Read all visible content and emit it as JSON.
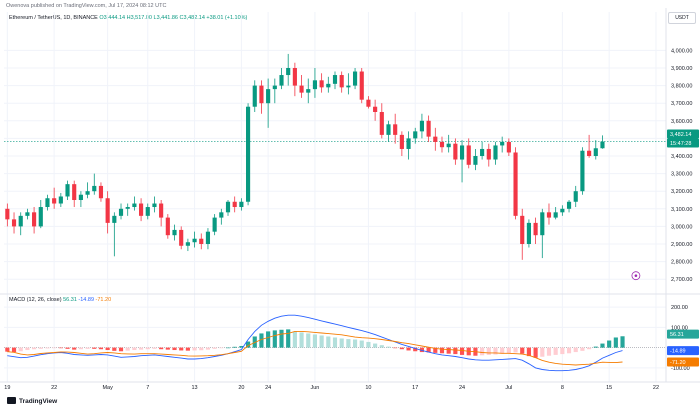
{
  "header": {
    "attribution": "Owenova published on TradingView.com, Jul 17, 2024 08:12 UTC"
  },
  "symbol": {
    "name": "Ethereum / TetherUS, 1D, BINANCE",
    "ohlc": "O3,444.14  H3,517.00  L3,441.86  C3,482.14  +38.01 (+1.10%)"
  },
  "currency_button": "USDT",
  "macd_title": {
    "label": "MACD (12, 26, close)",
    "hist": "56.31",
    "macd": "-14.89",
    "signal": "-71.20"
  },
  "logo": "TradingView",
  "colors": {
    "up": "#089981",
    "down": "#f23645",
    "macd_line": "#2962ff",
    "signal_line": "#f57c00",
    "hist_up": "#26a69a",
    "hist_up_light": "#b2dfdb",
    "hist_down": "#ff5252",
    "hist_down_light": "#ffcdd2"
  },
  "price_labels": {
    "last": "3,482.14",
    "countdown": "15:47:28"
  },
  "macd_labels": {
    "hist": "56.31",
    "macd": "-14.89",
    "signal": "-71.20"
  },
  "chart_data": [
    {
      "type": "candlestick",
      "ylim": [
        2650,
        4150
      ],
      "y_ticks": [
        2700,
        2800,
        2900,
        3000,
        3100,
        3200,
        3300,
        3400,
        3500,
        3600,
        3700,
        3800,
        3900,
        4000
      ],
      "y_tick_labels": [
        "2,700.00",
        "2,800.00",
        "2,900.00",
        "3,000.00",
        "3,100.00",
        "3,200.00",
        "3,300.00",
        "3,400.00",
        "3,500.00",
        "3,600.00",
        "3,700.00",
        "3,800.00",
        "3,900.00",
        "4,000.00"
      ],
      "x_tick_labels": [
        "19",
        "22",
        "May",
        "7",
        "13",
        "20",
        "24",
        "Jun",
        "10",
        "17",
        "24",
        "Jul",
        "8",
        "15",
        "22"
      ],
      "x_tick_index": [
        0,
        7,
        15,
        21,
        28,
        35,
        39,
        46,
        54,
        61,
        68,
        75,
        83,
        90,
        97
      ],
      "grid": true,
      "candles": [
        [
          3100,
          3130,
          3000,
          3040
        ],
        [
          3040,
          3080,
          2960,
          3000
        ],
        [
          3000,
          3080,
          2950,
          3060
        ],
        [
          3060,
          3100,
          3040,
          3080
        ],
        [
          3080,
          3110,
          2960,
          3000
        ],
        [
          3000,
          3150,
          2990,
          3110
        ],
        [
          3110,
          3180,
          3090,
          3160
        ],
        [
          3160,
          3220,
          3100,
          3130
        ],
        [
          3130,
          3190,
          3110,
          3170
        ],
        [
          3170,
          3260,
          3150,
          3240
        ],
        [
          3240,
          3260,
          3110,
          3150
        ],
        [
          3150,
          3200,
          3110,
          3180
        ],
        [
          3180,
          3250,
          3160,
          3200
        ],
        [
          3200,
          3300,
          3180,
          3230
        ],
        [
          3230,
          3250,
          3140,
          3160
        ],
        [
          3160,
          3200,
          2960,
          3020
        ],
        [
          3020,
          3080,
          2830,
          3060
        ],
        [
          3060,
          3130,
          3040,
          3100
        ],
        [
          3100,
          3130,
          3060,
          3110
        ],
        [
          3110,
          3170,
          3090,
          3130
        ],
        [
          3130,
          3160,
          3030,
          3060
        ],
        [
          3060,
          3130,
          3040,
          3110
        ],
        [
          3110,
          3170,
          3080,
          3130
        ],
        [
          3130,
          3150,
          3000,
          3050
        ],
        [
          3050,
          3070,
          2930,
          2950
        ],
        [
          2950,
          3010,
          2920,
          2980
        ],
        [
          2980,
          3000,
          2870,
          2890
        ],
        [
          2890,
          2930,
          2860,
          2910
        ],
        [
          2910,
          2970,
          2880,
          2930
        ],
        [
          2930,
          2960,
          2870,
          2900
        ],
        [
          2900,
          2990,
          2870,
          2970
        ],
        [
          2970,
          3070,
          2950,
          3050
        ],
        [
          3050,
          3100,
          3010,
          3080
        ],
        [
          3080,
          3150,
          3060,
          3140
        ],
        [
          3140,
          3170,
          3080,
          3110
        ],
        [
          3110,
          3160,
          3090,
          3140
        ],
        [
          3140,
          3700,
          3120,
          3680
        ],
        [
          3680,
          3830,
          3650,
          3800
        ],
        [
          3800,
          3830,
          3640,
          3700
        ],
        [
          3700,
          3840,
          3560,
          3780
        ],
        [
          3780,
          3840,
          3700,
          3800
        ],
        [
          3800,
          3900,
          3780,
          3860
        ],
        [
          3860,
          3980,
          3800,
          3900
        ],
        [
          3900,
          3930,
          3740,
          3800
        ],
        [
          3800,
          3860,
          3730,
          3760
        ],
        [
          3760,
          3840,
          3700,
          3780
        ],
        [
          3780,
          3900,
          3730,
          3830
        ],
        [
          3830,
          3870,
          3760,
          3790
        ],
        [
          3790,
          3850,
          3760,
          3810
        ],
        [
          3810,
          3880,
          3780,
          3860
        ],
        [
          3860,
          3880,
          3760,
          3790
        ],
        [
          3790,
          3870,
          3750,
          3800
        ],
        [
          3800,
          3900,
          3780,
          3880
        ],
        [
          3880,
          3900,
          3700,
          3720
        ],
        [
          3720,
          3740,
          3670,
          3680
        ],
        [
          3680,
          3720,
          3600,
          3650
        ],
        [
          3650,
          3700,
          3500,
          3520
        ],
        [
          3520,
          3600,
          3480,
          3580
        ],
        [
          3580,
          3640,
          3470,
          3520
        ],
        [
          3520,
          3540,
          3400,
          3440
        ],
        [
          3440,
          3540,
          3380,
          3500
        ],
        [
          3500,
          3560,
          3470,
          3540
        ],
        [
          3540,
          3640,
          3500,
          3600
        ],
        [
          3600,
          3630,
          3480,
          3510
        ],
        [
          3510,
          3560,
          3430,
          3480
        ],
        [
          3480,
          3510,
          3420,
          3450
        ],
        [
          3450,
          3520,
          3420,
          3470
        ],
        [
          3470,
          3500,
          3350,
          3380
        ],
        [
          3380,
          3490,
          3250,
          3460
        ],
        [
          3460,
          3500,
          3330,
          3350
        ],
        [
          3350,
          3440,
          3320,
          3400
        ],
        [
          3400,
          3480,
          3380,
          3440
        ],
        [
          3440,
          3470,
          3340,
          3380
        ],
        [
          3380,
          3480,
          3350,
          3460
        ],
        [
          3460,
          3510,
          3420,
          3480
        ],
        [
          3480,
          3500,
          3400,
          3420
        ],
        [
          3420,
          3450,
          3040,
          3060
        ],
        [
          3060,
          3100,
          2810,
          2900
        ],
        [
          2900,
          3040,
          2880,
          3020
        ],
        [
          3020,
          3050,
          2900,
          2950
        ],
        [
          2950,
          3100,
          2820,
          3080
        ],
        [
          3080,
          3130,
          3010,
          3050
        ],
        [
          3050,
          3110,
          3040,
          3080
        ],
        [
          3080,
          3120,
          3060,
          3100
        ],
        [
          3100,
          3150,
          3080,
          3140
        ],
        [
          3140,
          3230,
          3110,
          3200
        ],
        [
          3200,
          3450,
          3180,
          3430
        ],
        [
          3430,
          3520,
          3390,
          3400
        ],
        [
          3400,
          3490,
          3380,
          3444
        ],
        [
          3444,
          3517,
          3441,
          3482
        ]
      ],
      "last_price": 3482.14
    },
    {
      "type": "macd",
      "ylim": [
        -150,
        235
      ],
      "y_ticks": [
        -100,
        100,
        200
      ],
      "y_tick_labels": [
        "-100.00",
        "100.00",
        "200.00"
      ],
      "histogram": [
        -20,
        -22,
        -18,
        -12,
        -8,
        -6,
        -4,
        -2,
        -3,
        -6,
        -10,
        -8,
        -6,
        -6,
        -8,
        -12,
        -16,
        -18,
        -15,
        -12,
        -10,
        -8,
        -6,
        -8,
        -10,
        -12,
        -14,
        -15,
        -14,
        -13,
        -10,
        -6,
        -3,
        0,
        4,
        8,
        30,
        55,
        70,
        80,
        85,
        88,
        90,
        80,
        75,
        70,
        65,
        60,
        55,
        50,
        45,
        42,
        40,
        35,
        28,
        20,
        12,
        5,
        -2,
        -8,
        -14,
        -18,
        -22,
        -24,
        -26,
        -28,
        -30,
        -32,
        -36,
        -38,
        -40,
        -38,
        -36,
        -34,
        -30,
        -28,
        -24,
        -30,
        -42,
        -50,
        -45,
        -40,
        -36,
        -32,
        -28,
        -22,
        -16,
        -8,
        5,
        20,
        35,
        50,
        56
      ],
      "macd": [
        -40,
        -45,
        -50,
        -48,
        -42,
        -35,
        -30,
        -26,
        -24,
        -28,
        -34,
        -36,
        -38,
        -36,
        -34,
        -36,
        -42,
        -48,
        -46,
        -44,
        -40,
        -38,
        -36,
        -40,
        -44,
        -48,
        -52,
        -56,
        -56,
        -54,
        -50,
        -44,
        -38,
        -30,
        -20,
        -10,
        40,
        80,
        110,
        130,
        145,
        155,
        160,
        160,
        155,
        148,
        140,
        132,
        124,
        116,
        108,
        100,
        92,
        84,
        75,
        64,
        52,
        40,
        28,
        16,
        6,
        -4,
        -14,
        -22,
        -30,
        -36,
        -40,
        -44,
        -50,
        -56,
        -60,
        -62,
        -62,
        -60,
        -58,
        -56,
        -54,
        -62,
        -80,
        -100,
        -108,
        -112,
        -114,
        -114,
        -112,
        -108,
        -100,
        -90,
        -72,
        -52,
        -38,
        -24,
        -15
      ],
      "signal": [
        -20,
        -23,
        -32,
        -36,
        -34,
        -29,
        -26,
        -24,
        -21,
        -22,
        -24,
        -28,
        -32,
        -30,
        -26,
        -24,
        -26,
        -30,
        -31,
        -32,
        -30,
        -30,
        -30,
        -32,
        -34,
        -36,
        -38,
        -41,
        -42,
        -41,
        -40,
        -38,
        -35,
        -30,
        -24,
        -18,
        10,
        25,
        40,
        50,
        60,
        67,
        70,
        80,
        80,
        78,
        75,
        72,
        69,
        66,
        63,
        58,
        52,
        49,
        47,
        44,
        40,
        35,
        30,
        24,
        20,
        14,
        8,
        2,
        -4,
        -8,
        -10,
        -12,
        -14,
        -18,
        -20,
        -24,
        -26,
        -26,
        -28,
        -28,
        -30,
        -32,
        -38,
        -50,
        -63,
        -72,
        -78,
        -82,
        -84,
        -86,
        -84,
        -82,
        -77,
        -72,
        -73,
        -74,
        -71
      ]
    }
  ]
}
